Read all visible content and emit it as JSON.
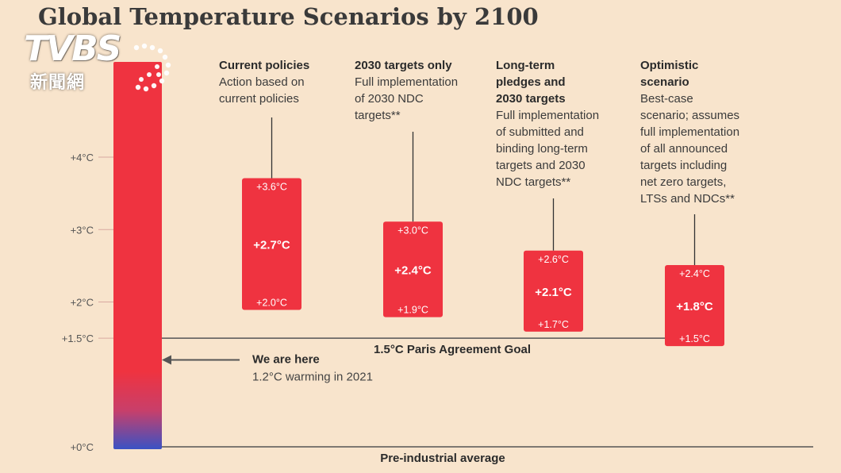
{
  "title": "Global Temperature Scenarios by 2100",
  "logo": {
    "text": "TVBS",
    "subtitle": "新聞網"
  },
  "colors": {
    "background": "#f8e4cc",
    "bar": "#ef3340",
    "bar_bottom": "#3a52c4",
    "axis": "#555555",
    "text": "#2b2b2b"
  },
  "chart_data": {
    "type": "bar",
    "unit": "°C",
    "ylim": [
      0,
      4.7
    ],
    "y_ticks": [
      {
        "value": 4,
        "label": "+4°C"
      },
      {
        "value": 3,
        "label": "+3°C"
      },
      {
        "value": 2,
        "label": "+2°C"
      },
      {
        "value": 1.5,
        "label": "+1.5°C"
      },
      {
        "value": 0,
        "label": "+0°C"
      }
    ],
    "scenarios": [
      {
        "name": "Current policies",
        "desc": [
          "Action based on",
          "current policies"
        ],
        "low": 2.0,
        "mid": 2.7,
        "high": 3.6,
        "low_label": "+2.0°C",
        "mid_label": "+2.7°C",
        "high_label": "+3.6°C"
      },
      {
        "name": "2030 targets only",
        "desc": [
          "Full implementation",
          "of 2030 NDC",
          "targets**"
        ],
        "low": 1.9,
        "mid": 2.4,
        "high": 3.0,
        "low_label": "+1.9°C",
        "mid_label": "+2.4°C",
        "high_label": "+3.0°C"
      },
      {
        "name_lines": [
          "Long-term",
          "pledges and",
          "2030 targets"
        ],
        "desc": [
          "Full implementation",
          "of submitted and",
          "binding long-term",
          "targets and 2030",
          "NDC targets**"
        ],
        "low": 1.7,
        "mid": 2.1,
        "high": 2.6,
        "low_label": "+1.7°C",
        "mid_label": "+2.1°C",
        "high_label": "+2.6°C"
      },
      {
        "name_lines": [
          "Optimistic",
          "scenario"
        ],
        "desc": [
          "Best-case",
          "scenario; assumes",
          "full implementation",
          "of all announced",
          "targets including",
          "net zero targets,",
          "LTSs and NDCs**"
        ],
        "low": 1.5,
        "mid": 1.8,
        "high": 2.4,
        "low_label": "+1.5°C",
        "mid_label": "+1.8°C",
        "high_label": "+2.4°C"
      }
    ],
    "reference_lines": [
      {
        "value": 1.5,
        "label": "1.5°C Paris Agreement Goal"
      },
      {
        "value": 0,
        "label": "Pre-industrial average"
      }
    ],
    "annotation": {
      "value": 1.2,
      "title": "We are here",
      "text": "1.2°C warming in 2021"
    }
  }
}
